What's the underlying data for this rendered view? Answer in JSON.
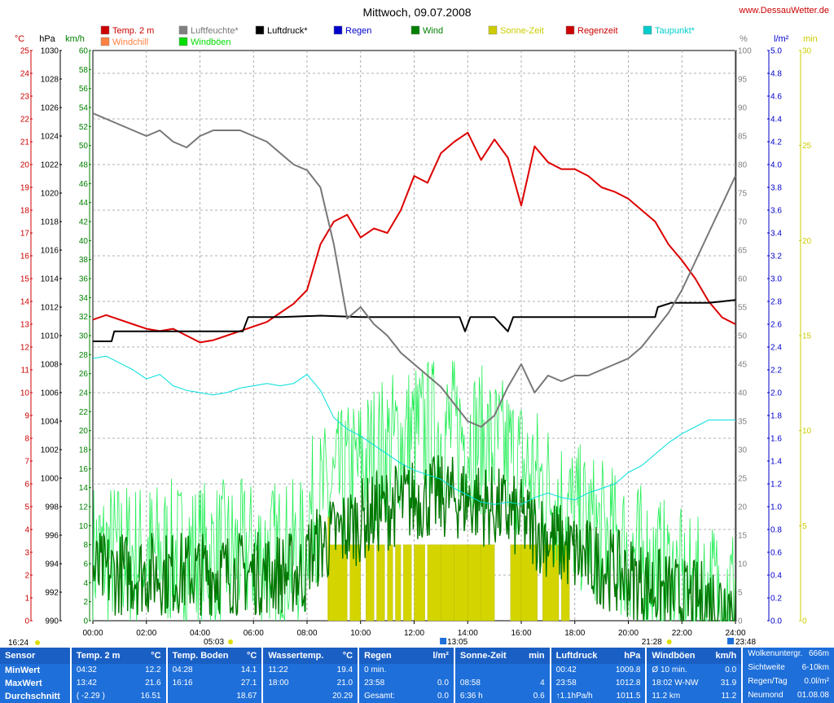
{
  "header": {
    "title": "Mittwoch, 09.07.2008",
    "site": "www.DessauWetter.de"
  },
  "chart_data": {
    "type": "line",
    "title": "Mittwoch, 09.07.2008",
    "x_ticks": [
      "00:00",
      "02:00",
      "04:00",
      "06:00",
      "08:00",
      "10:00",
      "12:00",
      "14:00",
      "16:00",
      "18:00",
      "20:00",
      "22:00",
      "24:00"
    ],
    "x_range_hours": [
      0,
      24
    ],
    "left_axes": [
      {
        "unit": "°C",
        "color": "#cc0000",
        "range": [
          0.0,
          25.0
        ],
        "step": 1.0
      },
      {
        "unit": "hPa",
        "color": "#000000",
        "range": [
          990,
          1030
        ],
        "step": 2
      },
      {
        "unit": "km/h",
        "color": "#008000",
        "range": [
          0.0,
          60.0
        ],
        "step": 2.0
      }
    ],
    "right_axes": [
      {
        "unit": "%",
        "color": "#808080",
        "range": [
          0,
          100
        ],
        "step": 5
      },
      {
        "unit": "l/m²",
        "color": "#0000cc",
        "range": [
          0.0,
          5.0
        ],
        "step": 0.2
      },
      {
        "unit": "min",
        "color": "#cccc00",
        "range": [
          0,
          30
        ],
        "step": 5
      }
    ],
    "legend": [
      {
        "name": "Temp. 2 m",
        "color": "#cc0000"
      },
      {
        "name": "Luftfeuchte*",
        "color": "#808080"
      },
      {
        "name": "Luftdruck*",
        "color": "#000000"
      },
      {
        "name": "Regen",
        "color": "#0000cc"
      },
      {
        "name": "Wind",
        "color": "#008000"
      },
      {
        "name": "Sonne-Zeit",
        "color": "#cccc00"
      },
      {
        "name": "Regenzeit",
        "color": "#cc0000"
      },
      {
        "name": "Taupunkt*",
        "color": "#00cccc"
      },
      {
        "name": "Windchill",
        "color": "#ff8040"
      },
      {
        "name": "Windböen",
        "color": "#00dd00"
      }
    ],
    "series": [
      {
        "name": "Temp. 2 m",
        "axis": "°C",
        "x": [
          0,
          0.5,
          1,
          1.5,
          2,
          2.5,
          3,
          3.5,
          4,
          4.5,
          5,
          5.5,
          6,
          6.5,
          7,
          7.5,
          8,
          8.5,
          9,
          9.5,
          10,
          10.5,
          11,
          11.5,
          12,
          12.5,
          13,
          13.5,
          14,
          14.5,
          15,
          15.5,
          16,
          16.5,
          17,
          17.5,
          18,
          18.5,
          19,
          19.5,
          20,
          20.5,
          21,
          21.5,
          22,
          22.5,
          23,
          23.5,
          24
        ],
        "y": [
          13.2,
          13.4,
          13.2,
          13.0,
          12.8,
          12.7,
          12.8,
          12.5,
          12.2,
          12.3,
          12.5,
          12.7,
          12.9,
          13.1,
          13.5,
          13.9,
          14.5,
          16.5,
          17.5,
          17.8,
          16.8,
          17.2,
          17.0,
          18.0,
          19.5,
          19.2,
          20.5,
          21.0,
          21.4,
          20.2,
          21.1,
          20.3,
          18.2,
          20.8,
          20.1,
          19.8,
          19.8,
          19.5,
          19.0,
          18.8,
          18.5,
          18.0,
          17.5,
          16.5,
          15.8,
          15.0,
          14.0,
          13.3,
          13.0
        ]
      },
      {
        "name": "Luftdruck*",
        "axis": "hPa",
        "x": [
          0,
          0.7,
          0.8,
          1.5,
          3,
          5,
          5.6,
          5.8,
          7,
          8.5,
          10,
          12,
          13,
          13.7,
          13.9,
          14.1,
          15,
          15.5,
          15.7,
          16,
          18,
          20,
          21,
          21.1,
          21.6,
          22,
          23,
          24
        ],
        "y": [
          1009.6,
          1009.6,
          1010.3,
          1010.3,
          1010.3,
          1010.3,
          1010.3,
          1011.3,
          1011.3,
          1011.4,
          1011.3,
          1011.3,
          1011.3,
          1011.3,
          1010.3,
          1011.3,
          1011.3,
          1010.3,
          1011.3,
          1011.3,
          1011.3,
          1011.3,
          1011.3,
          1012.0,
          1012.3,
          1012.3,
          1012.3,
          1012.5
        ]
      },
      {
        "name": "Luftfeuchte*",
        "axis": "%",
        "x": [
          0,
          0.5,
          1,
          1.5,
          2,
          2.5,
          3,
          3.5,
          4,
          4.5,
          5,
          5.5,
          6,
          6.5,
          7,
          7.5,
          8,
          8.5,
          9,
          9.5,
          10,
          10.5,
          11,
          11.5,
          12,
          12.5,
          13,
          13.5,
          14,
          14.5,
          15,
          15.5,
          16,
          16.5,
          17,
          17.5,
          18,
          18.5,
          19,
          19.5,
          20,
          20.5,
          21,
          21.5,
          22,
          22.5,
          23,
          23.5,
          24
        ],
        "y": [
          89,
          88,
          87,
          86,
          85,
          86,
          84,
          83,
          85,
          86,
          86,
          86,
          85,
          84,
          82,
          80,
          79,
          76,
          66,
          53,
          55,
          52,
          50,
          47,
          45,
          43,
          41,
          38,
          35,
          34,
          36,
          41,
          45,
          40,
          43,
          42,
          43,
          43,
          44,
          45,
          46,
          48,
          51,
          54,
          58,
          63,
          68,
          73,
          78
        ]
      },
      {
        "name": "Taupunkt*",
        "axis": "°C",
        "x": [
          0,
          0.5,
          1,
          1.5,
          2,
          2.5,
          3,
          3.5,
          4,
          4.5,
          5,
          5.5,
          6,
          6.5,
          7,
          7.5,
          8,
          8.5,
          9,
          9.5,
          10,
          10.5,
          11,
          11.5,
          12,
          12.5,
          13,
          13.5,
          14,
          14.5,
          15,
          15.5,
          16,
          16.5,
          17,
          17.5,
          18,
          18.5,
          19,
          19.5,
          20,
          20.5,
          21,
          21.5,
          22,
          22.5,
          23,
          23.5,
          24
        ],
        "y": [
          11.5,
          11.6,
          11.3,
          11.0,
          10.6,
          10.8,
          10.3,
          10.1,
          10.0,
          9.9,
          10.0,
          10.2,
          10.3,
          10.4,
          10.3,
          10.4,
          10.8,
          10.1,
          8.9,
          8.4,
          8.1,
          7.7,
          7.3,
          6.9,
          6.6,
          6.4,
          6.2,
          5.8,
          5.5,
          5.2,
          5.1,
          5.2,
          5.1,
          5.4,
          5.6,
          5.4,
          5.3,
          5.6,
          5.8,
          6.0,
          6.5,
          6.8,
          7.3,
          7.8,
          8.2,
          8.5,
          8.8,
          8.8,
          8.8
        ]
      },
      {
        "name": "Wind",
        "axis": "km/h",
        "note": "noisy line 2–18 km/h"
      },
      {
        "name": "Windböen",
        "axis": "km/h",
        "note": "noisy line 2–32 km/h"
      },
      {
        "name": "Sonne-Zeit",
        "axis": "min",
        "type": "bar",
        "x": [
          8.8,
          9.6,
          10.2,
          10.6,
          11.0,
          11.3,
          11.6,
          12.0,
          12.5,
          13.0,
          13.5,
          14.0,
          14.5,
          15.6,
          16.0,
          16.8,
          17.5
        ],
        "widths": [
          0.7,
          0.4,
          0.3,
          0.3,
          0.2,
          0.2,
          0.3,
          0.4,
          0.5,
          0.5,
          0.5,
          0.5,
          0.5,
          0.4,
          0.6,
          0.6,
          0.3
        ],
        "values": [
          4,
          4,
          4,
          4,
          4,
          4,
          4,
          4,
          4,
          4,
          4,
          4,
          4,
          4,
          4,
          4,
          4
        ]
      }
    ],
    "events": {
      "sunrise": "05:03",
      "sunset": "21:28",
      "moonrise_left": "16:24",
      "moonset_right": "23:48",
      "noon": "13:05"
    }
  },
  "stats": {
    "sensor": {
      "title": "Sensor",
      "rows": [
        "MinWert",
        "MaxWert",
        "Durchschnitt"
      ]
    },
    "temp2m": {
      "title": "Temp. 2 m",
      "unit": "°C",
      "rows": [
        [
          "04:32",
          "12.2"
        ],
        [
          "13:42",
          "21.6"
        ],
        [
          "( -2.29 )",
          "16.51"
        ]
      ]
    },
    "tempBoden": {
      "title": "Temp. Boden",
      "unit": "°C",
      "rows": [
        [
          "04:28",
          "14.1"
        ],
        [
          "16:16",
          "27.1"
        ],
        [
          "",
          "18.67"
        ]
      ]
    },
    "wasser": {
      "title": "Wassertemp.",
      "unit": "°C",
      "rows": [
        [
          "11:22",
          "19.4"
        ],
        [
          "18:00",
          "21.0"
        ],
        [
          "",
          "20.29"
        ]
      ]
    },
    "regen": {
      "title": "Regen",
      "unit": "l/m²",
      "rows": [
        [
          "0 min.",
          ""
        ],
        [
          "23:58",
          "0.0"
        ],
        [
          "Gesamt:",
          "0.0"
        ]
      ]
    },
    "sonne": {
      "title": "Sonne-Zeit",
      "unit": "min",
      "rows": [
        [
          "",
          ""
        ],
        [
          "08:58",
          "4"
        ],
        [
          "6:36 h",
          "0.6"
        ]
      ]
    },
    "luftdruck": {
      "title": "Luftdruck",
      "unit": "hPa",
      "rows": [
        [
          "00:42",
          "1009.8"
        ],
        [
          "23:58",
          "1012.8"
        ],
        [
          "↑1.1hPa/h",
          "1011.5"
        ]
      ]
    },
    "windboeen": {
      "title": "Windböen",
      "unit": "km/h",
      "rows": [
        [
          "Ø 10 min.",
          "0.0"
        ],
        [
          "18:02  W-NW",
          "31.9"
        ],
        [
          "11.2 km",
          "11.2"
        ]
      ]
    },
    "extra": {
      "rows": [
        [
          "Wolkenuntergr.",
          "666m"
        ],
        [
          "Sichtweite",
          "6-10km"
        ],
        [
          "Regen/Tag",
          "0.0l/m²"
        ],
        [
          "Neumond",
          "01.08.08"
        ]
      ]
    }
  }
}
